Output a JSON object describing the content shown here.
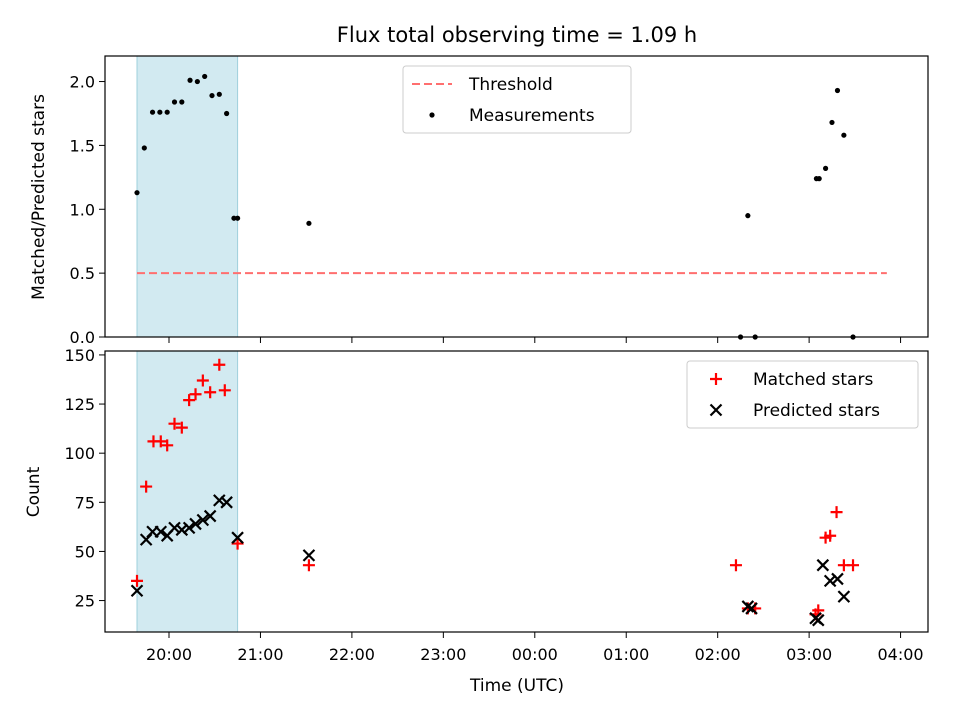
{
  "title": "Flux total observing time = 1.09 h",
  "chart_data": [
    {
      "type": "scatter",
      "ylabel": "Matched/Predicted stars",
      "xlim": [
        -0.35,
        8.65
      ],
      "ylim": [
        0,
        2.2
      ],
      "yticks": [
        0.0,
        0.5,
        1.0,
        1.5,
        2.0
      ],
      "ytick_labels": [
        "0.0",
        "0.5",
        "1.0",
        "1.5",
        "2.0"
      ],
      "shaded_region": {
        "x": [
          0.0,
          1.1
        ],
        "color": "#add8e6"
      },
      "legend": {
        "placement": "upper center",
        "entries": [
          "Threshold",
          "Measurements"
        ]
      },
      "series": [
        {
          "name": "Threshold",
          "kind": "line",
          "color": "#ff6f6f",
          "style": "dashed",
          "x": [
            0.0,
            8.2
          ],
          "y": [
            0.5,
            0.5
          ]
        },
        {
          "name": "Measurements",
          "kind": "scatter",
          "color": "#000000",
          "x": [
            0.0,
            0.08,
            0.17,
            0.25,
            0.33,
            0.41,
            0.49,
            0.58,
            0.66,
            0.74,
            0.82,
            0.9,
            0.98,
            1.06,
            1.1,
            1.88,
            6.6,
            6.68,
            6.76,
            7.43,
            7.46,
            7.53,
            7.6,
            7.66,
            7.73,
            7.83
          ],
          "y": [
            1.13,
            1.48,
            1.76,
            1.76,
            1.76,
            1.84,
            1.84,
            2.01,
            2.0,
            2.04,
            1.89,
            1.9,
            1.75,
            0.93,
            0.93,
            0.89,
            0.0,
            0.95,
            0.0,
            1.24,
            1.24,
            1.32,
            1.68,
            1.93,
            1.58,
            0.0
          ]
        }
      ]
    },
    {
      "type": "scatter",
      "xlabel": "Time (UTC)",
      "ylabel": "Count",
      "xlim": [
        -0.35,
        8.65
      ],
      "ylim": [
        9,
        152
      ],
      "xticks": [
        0.35,
        1.35,
        2.35,
        3.35,
        4.35,
        5.35,
        6.35,
        7.35,
        8.35
      ],
      "xtick_labels": [
        "20:00",
        "21:00",
        "22:00",
        "23:00",
        "00:00",
        "01:00",
        "02:00",
        "03:00",
        "04:00"
      ],
      "yticks": [
        25,
        50,
        75,
        100,
        125,
        150
      ],
      "ytick_labels": [
        "25",
        "50",
        "75",
        "100",
        "125",
        "150"
      ],
      "shaded_region": {
        "x": [
          0.0,
          1.1
        ],
        "color": "#add8e6"
      },
      "legend": {
        "placement": "upper right",
        "entries": [
          "Matched stars",
          "Predicted stars"
        ]
      },
      "series": [
        {
          "name": "Matched stars",
          "marker": "+",
          "color": "#ff0000",
          "x": [
            0.0,
            0.1,
            0.18,
            0.26,
            0.33,
            0.41,
            0.49,
            0.57,
            0.64,
            0.72,
            0.8,
            0.9,
            0.96,
            1.1,
            1.88,
            6.55,
            6.68,
            6.76,
            7.42,
            7.45,
            7.53,
            7.58,
            7.65,
            7.73,
            7.83
          ],
          "y": [
            35,
            83,
            106,
            106,
            104,
            115,
            113,
            127,
            130,
            137,
            131,
            145,
            132,
            54,
            43,
            43,
            21,
            21,
            18,
            20,
            57,
            58,
            70,
            43,
            43
          ]
        },
        {
          "name": "Predicted stars",
          "marker": "x",
          "color": "#000000",
          "x": [
            0.0,
            0.1,
            0.17,
            0.26,
            0.33,
            0.41,
            0.49,
            0.57,
            0.64,
            0.72,
            0.8,
            0.9,
            0.98,
            1.1,
            1.88,
            6.68,
            6.72,
            7.42,
            7.45,
            7.5,
            7.58,
            7.66,
            7.73
          ],
          "y": [
            30,
            56,
            60,
            60,
            58,
            62,
            61,
            62,
            64,
            66,
            68,
            76,
            75,
            57,
            48,
            22,
            21,
            16,
            15,
            43,
            35,
            36,
            27
          ]
        }
      ]
    }
  ]
}
